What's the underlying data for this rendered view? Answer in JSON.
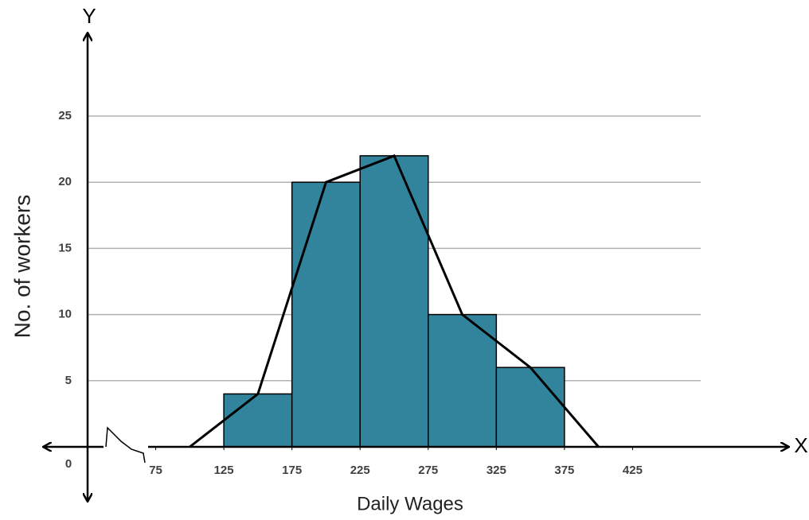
{
  "chart_data": {
    "type": "histogram",
    "x_axis_label": "Daily Wages",
    "y_axis_label": "No. of workers",
    "x_axis_letter": "X",
    "y_axis_letter": "Y",
    "origin_label": "0",
    "x_axis_break": true,
    "bins": [
      125,
      175,
      225,
      275,
      325,
      375
    ],
    "values": [
      4,
      20,
      22,
      10,
      6
    ],
    "color": "#31849b",
    "polygon": {
      "x": [
        100,
        150,
        200,
        250,
        300,
        350,
        400
      ],
      "values": [
        0,
        4,
        20,
        22,
        10,
        6,
        0
      ],
      "color": "#000000"
    },
    "xlim": [
      25,
      475
    ],
    "xticks": [
      75,
      125,
      175,
      225,
      275,
      325,
      375,
      425
    ],
    "ylim": [
      0,
      25
    ],
    "yticks": [
      5,
      10,
      15,
      20,
      25
    ],
    "grid": true
  }
}
